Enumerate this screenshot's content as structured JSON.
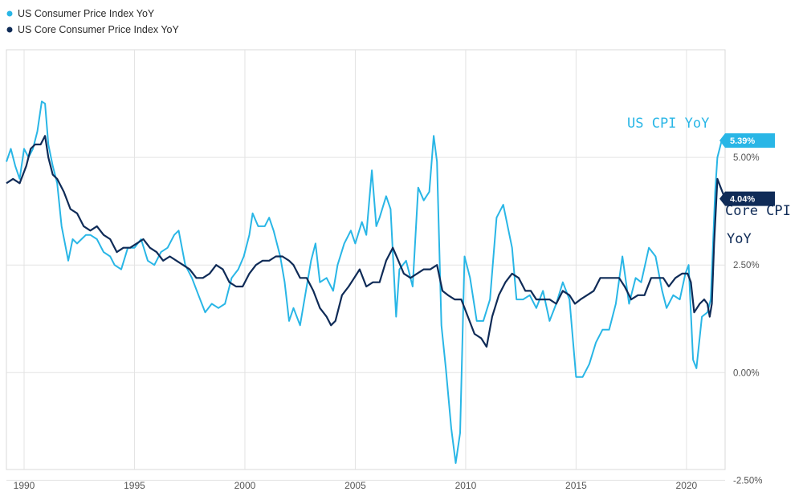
{
  "chart_data": {
    "type": "line",
    "title": "",
    "xlabel": "",
    "ylabel": "",
    "xlim": [
      1989.2,
      2021.75
    ],
    "ylim": [
      -2.25,
      7.5
    ],
    "x_ticks": [
      1990,
      1995,
      2000,
      2005,
      2010,
      2015,
      2020
    ],
    "x_tick_labels": [
      "1990",
      "1995",
      "2000",
      "2005",
      "2010",
      "2015",
      "2020"
    ],
    "y_ticks": [
      -2.5,
      0.0,
      2.5,
      5.0
    ],
    "y_tick_labels": [
      "-2.50%",
      "0.00%",
      "2.50%",
      "5.00%"
    ],
    "grid": true,
    "legend_position": "top-left",
    "series": [
      {
        "name": "US Consumer Price Index YoY",
        "color": "#29b6e6",
        "last_value_label": "5.39%",
        "points": [
          [
            1989.2,
            4.9
          ],
          [
            1989.4,
            5.2
          ],
          [
            1989.6,
            4.8
          ],
          [
            1989.8,
            4.5
          ],
          [
            1990.0,
            5.2
          ],
          [
            1990.2,
            5.0
          ],
          [
            1990.4,
            5.2
          ],
          [
            1990.6,
            5.6
          ],
          [
            1990.8,
            6.3
          ],
          [
            1990.95,
            6.25
          ],
          [
            1991.1,
            5.3
          ],
          [
            1991.3,
            4.8
          ],
          [
            1991.5,
            4.4
          ],
          [
            1991.7,
            3.4
          ],
          [
            1991.85,
            3.0
          ],
          [
            1992.0,
            2.6
          ],
          [
            1992.2,
            3.1
          ],
          [
            1992.4,
            3.0
          ],
          [
            1992.6,
            3.1
          ],
          [
            1992.8,
            3.2
          ],
          [
            1993.0,
            3.2
          ],
          [
            1993.3,
            3.1
          ],
          [
            1993.6,
            2.8
          ],
          [
            1993.9,
            2.7
          ],
          [
            1994.1,
            2.5
          ],
          [
            1994.4,
            2.4
          ],
          [
            1994.7,
            2.9
          ],
          [
            1995.0,
            2.9
          ],
          [
            1995.3,
            3.1
          ],
          [
            1995.6,
            2.6
          ],
          [
            1995.9,
            2.5
          ],
          [
            1996.2,
            2.8
          ],
          [
            1996.5,
            2.9
          ],
          [
            1996.8,
            3.2
          ],
          [
            1997.0,
            3.3
          ],
          [
            1997.3,
            2.5
          ],
          [
            1997.6,
            2.2
          ],
          [
            1997.9,
            1.8
          ],
          [
            1998.2,
            1.4
          ],
          [
            1998.5,
            1.6
          ],
          [
            1998.8,
            1.5
          ],
          [
            1999.1,
            1.6
          ],
          [
            1999.4,
            2.2
          ],
          [
            1999.7,
            2.4
          ],
          [
            1999.95,
            2.7
          ],
          [
            2000.2,
            3.2
          ],
          [
            2000.35,
            3.7
          ],
          [
            2000.6,
            3.4
          ],
          [
            2000.9,
            3.4
          ],
          [
            2001.1,
            3.6
          ],
          [
            2001.3,
            3.3
          ],
          [
            2001.6,
            2.7
          ],
          [
            2001.8,
            2.1
          ],
          [
            2002.0,
            1.2
          ],
          [
            2002.2,
            1.5
          ],
          [
            2002.5,
            1.1
          ],
          [
            2002.8,
            2.0
          ],
          [
            2003.0,
            2.6
          ],
          [
            2003.2,
            3.0
          ],
          [
            2003.4,
            2.1
          ],
          [
            2003.7,
            2.2
          ],
          [
            2004.0,
            1.9
          ],
          [
            2004.2,
            2.5
          ],
          [
            2004.5,
            3.0
          ],
          [
            2004.8,
            3.3
          ],
          [
            2005.0,
            3.0
          ],
          [
            2005.3,
            3.5
          ],
          [
            2005.5,
            3.2
          ],
          [
            2005.75,
            4.7
          ],
          [
            2005.95,
            3.4
          ],
          [
            2006.1,
            3.6
          ],
          [
            2006.4,
            4.1
          ],
          [
            2006.6,
            3.8
          ],
          [
            2006.85,
            1.3
          ],
          [
            2007.0,
            2.4
          ],
          [
            2007.3,
            2.6
          ],
          [
            2007.6,
            2.0
          ],
          [
            2007.85,
            4.3
          ],
          [
            2008.1,
            4.0
          ],
          [
            2008.35,
            4.2
          ],
          [
            2008.55,
            5.5
          ],
          [
            2008.7,
            4.9
          ],
          [
            2008.9,
            1.1
          ],
          [
            2009.1,
            0.1
          ],
          [
            2009.35,
            -1.3
          ],
          [
            2009.55,
            -2.1
          ],
          [
            2009.75,
            -1.4
          ],
          [
            2009.95,
            2.7
          ],
          [
            2010.2,
            2.2
          ],
          [
            2010.5,
            1.2
          ],
          [
            2010.8,
            1.2
          ],
          [
            2011.1,
            1.7
          ],
          [
            2011.4,
            3.6
          ],
          [
            2011.7,
            3.9
          ],
          [
            2011.9,
            3.4
          ],
          [
            2012.1,
            2.9
          ],
          [
            2012.3,
            1.7
          ],
          [
            2012.6,
            1.7
          ],
          [
            2012.9,
            1.8
          ],
          [
            2013.2,
            1.5
          ],
          [
            2013.5,
            1.9
          ],
          [
            2013.8,
            1.2
          ],
          [
            2014.1,
            1.6
          ],
          [
            2014.4,
            2.1
          ],
          [
            2014.7,
            1.7
          ],
          [
            2015.0,
            -0.1
          ],
          [
            2015.3,
            -0.1
          ],
          [
            2015.6,
            0.2
          ],
          [
            2015.9,
            0.7
          ],
          [
            2016.2,
            1.0
          ],
          [
            2016.5,
            1.0
          ],
          [
            2016.8,
            1.6
          ],
          [
            2017.1,
            2.7
          ],
          [
            2017.4,
            1.6
          ],
          [
            2017.7,
            2.2
          ],
          [
            2017.95,
            2.1
          ],
          [
            2018.3,
            2.9
          ],
          [
            2018.6,
            2.7
          ],
          [
            2018.9,
            1.9
          ],
          [
            2019.1,
            1.5
          ],
          [
            2019.4,
            1.8
          ],
          [
            2019.7,
            1.7
          ],
          [
            2019.95,
            2.3
          ],
          [
            2020.1,
            2.5
          ],
          [
            2020.3,
            0.3
          ],
          [
            2020.45,
            0.1
          ],
          [
            2020.7,
            1.3
          ],
          [
            2020.95,
            1.4
          ],
          [
            2021.1,
            1.7
          ],
          [
            2021.3,
            4.2
          ],
          [
            2021.4,
            5.0
          ],
          [
            2021.6,
            5.4
          ],
          [
            2021.75,
            5.39
          ]
        ]
      },
      {
        "name": "US Core Consumer Price Index YoY",
        "color": "#0f2b57",
        "last_value_label": "4.04%",
        "points": [
          [
            1989.2,
            4.4
          ],
          [
            1989.5,
            4.5
          ],
          [
            1989.8,
            4.4
          ],
          [
            1990.1,
            4.8
          ],
          [
            1990.3,
            5.2
          ],
          [
            1990.5,
            5.3
          ],
          [
            1990.75,
            5.3
          ],
          [
            1990.95,
            5.5
          ],
          [
            1991.1,
            5.0
          ],
          [
            1991.3,
            4.6
          ],
          [
            1991.5,
            4.5
          ],
          [
            1991.8,
            4.2
          ],
          [
            1992.1,
            3.8
          ],
          [
            1992.4,
            3.7
          ],
          [
            1992.7,
            3.4
          ],
          [
            1993.0,
            3.3
          ],
          [
            1993.3,
            3.4
          ],
          [
            1993.6,
            3.2
          ],
          [
            1993.9,
            3.1
          ],
          [
            1994.2,
            2.8
          ],
          [
            1994.5,
            2.9
          ],
          [
            1994.8,
            2.9
          ],
          [
            1995.1,
            3.0
          ],
          [
            1995.4,
            3.1
          ],
          [
            1995.7,
            2.9
          ],
          [
            1996.0,
            2.8
          ],
          [
            1996.3,
            2.6
          ],
          [
            1996.6,
            2.7
          ],
          [
            1996.9,
            2.6
          ],
          [
            1997.2,
            2.5
          ],
          [
            1997.5,
            2.4
          ],
          [
            1997.8,
            2.2
          ],
          [
            1998.1,
            2.2
          ],
          [
            1998.4,
            2.3
          ],
          [
            1998.7,
            2.5
          ],
          [
            1999.0,
            2.4
          ],
          [
            1999.3,
            2.1
          ],
          [
            1999.6,
            2.0
          ],
          [
            1999.9,
            2.0
          ],
          [
            2000.2,
            2.3
          ],
          [
            2000.5,
            2.5
          ],
          [
            2000.8,
            2.6
          ],
          [
            2001.1,
            2.6
          ],
          [
            2001.4,
            2.7
          ],
          [
            2001.7,
            2.7
          ],
          [
            2002.0,
            2.6
          ],
          [
            2002.2,
            2.5
          ],
          [
            2002.5,
            2.2
          ],
          [
            2002.8,
            2.2
          ],
          [
            2003.1,
            1.9
          ],
          [
            2003.4,
            1.5
          ],
          [
            2003.7,
            1.3
          ],
          [
            2003.9,
            1.1
          ],
          [
            2004.1,
            1.2
          ],
          [
            2004.4,
            1.8
          ],
          [
            2004.7,
            2.0
          ],
          [
            2004.95,
            2.2
          ],
          [
            2005.2,
            2.4
          ],
          [
            2005.5,
            2.0
          ],
          [
            2005.8,
            2.1
          ],
          [
            2006.1,
            2.1
          ],
          [
            2006.4,
            2.6
          ],
          [
            2006.7,
            2.9
          ],
          [
            2006.95,
            2.6
          ],
          [
            2007.2,
            2.3
          ],
          [
            2007.5,
            2.2
          ],
          [
            2007.8,
            2.3
          ],
          [
            2008.1,
            2.4
          ],
          [
            2008.4,
            2.4
          ],
          [
            2008.7,
            2.5
          ],
          [
            2008.95,
            1.9
          ],
          [
            2009.2,
            1.8
          ],
          [
            2009.5,
            1.7
          ],
          [
            2009.8,
            1.7
          ],
          [
            2010.1,
            1.3
          ],
          [
            2010.4,
            0.9
          ],
          [
            2010.7,
            0.8
          ],
          [
            2010.95,
            0.6
          ],
          [
            2011.2,
            1.3
          ],
          [
            2011.5,
            1.8
          ],
          [
            2011.8,
            2.1
          ],
          [
            2012.1,
            2.3
          ],
          [
            2012.4,
            2.2
          ],
          [
            2012.7,
            1.9
          ],
          [
            2012.95,
            1.9
          ],
          [
            2013.2,
            1.7
          ],
          [
            2013.5,
            1.7
          ],
          [
            2013.8,
            1.7
          ],
          [
            2014.1,
            1.6
          ],
          [
            2014.4,
            1.9
          ],
          [
            2014.7,
            1.8
          ],
          [
            2014.95,
            1.6
          ],
          [
            2015.2,
            1.7
          ],
          [
            2015.5,
            1.8
          ],
          [
            2015.8,
            1.9
          ],
          [
            2016.1,
            2.2
          ],
          [
            2016.4,
            2.2
          ],
          [
            2016.7,
            2.2
          ],
          [
            2016.95,
            2.2
          ],
          [
            2017.2,
            2.0
          ],
          [
            2017.5,
            1.7
          ],
          [
            2017.8,
            1.8
          ],
          [
            2018.1,
            1.8
          ],
          [
            2018.4,
            2.2
          ],
          [
            2018.7,
            2.2
          ],
          [
            2018.95,
            2.2
          ],
          [
            2019.2,
            2.0
          ],
          [
            2019.5,
            2.2
          ],
          [
            2019.8,
            2.3
          ],
          [
            2020.05,
            2.3
          ],
          [
            2020.2,
            2.1
          ],
          [
            2020.35,
            1.4
          ],
          [
            2020.6,
            1.6
          ],
          [
            2020.8,
            1.7
          ],
          [
            2020.95,
            1.6
          ],
          [
            2021.05,
            1.3
          ],
          [
            2021.15,
            1.6
          ],
          [
            2021.25,
            3.0
          ],
          [
            2021.4,
            4.5
          ],
          [
            2021.55,
            4.3
          ],
          [
            2021.75,
            4.04
          ]
        ]
      }
    ],
    "annotations": [
      {
        "text": "US CPI YoY",
        "series": "US Consumer Price Index YoY"
      },
      {
        "text": "Core CPI",
        "series": "US Core Consumer Price Index YoY"
      },
      {
        "text": "YoY",
        "series": "US Core Consumer Price Index YoY"
      }
    ]
  }
}
